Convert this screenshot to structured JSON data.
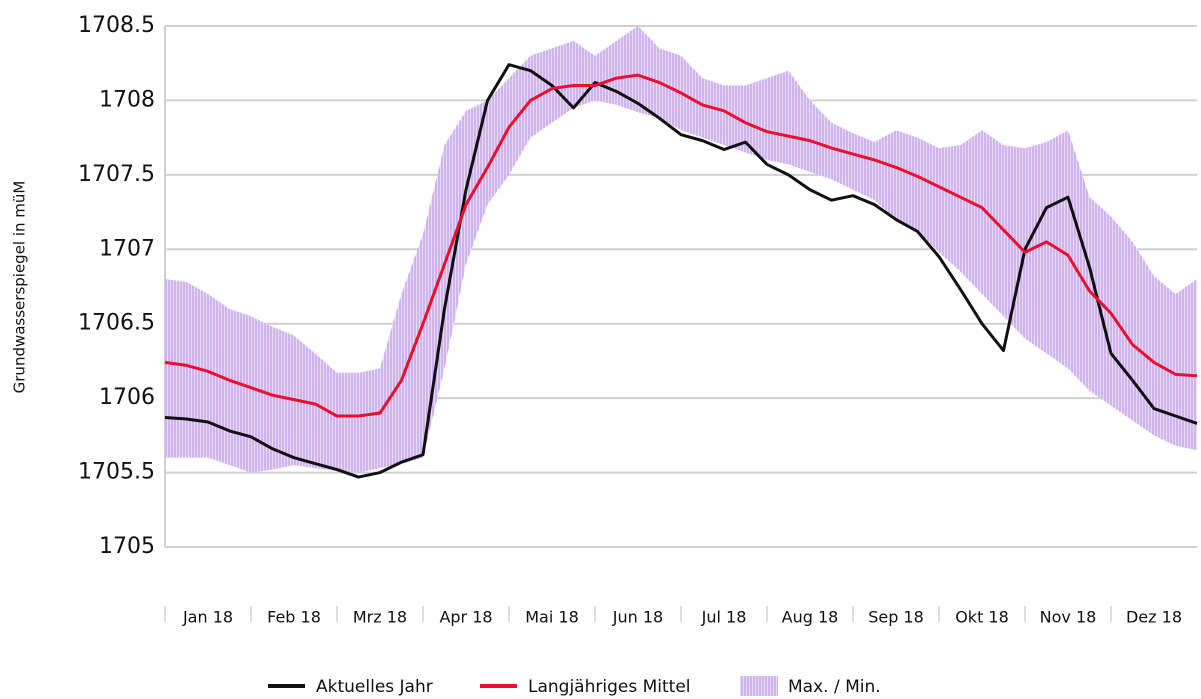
{
  "chart_data": {
    "type": "line",
    "y_label": "Grundwasserspiegel in müM",
    "x": [
      0,
      0.25,
      0.5,
      0.75,
      1,
      1.25,
      1.5,
      1.75,
      2,
      2.25,
      2.5,
      2.75,
      3,
      3.25,
      3.5,
      3.75,
      4,
      4.25,
      4.5,
      4.75,
      5,
      5.25,
      5.5,
      5.75,
      6,
      6.25,
      6.5,
      6.75,
      7,
      7.25,
      7.5,
      7.75,
      8,
      8.25,
      8.5,
      8.75,
      9,
      9.25,
      9.5,
      9.75,
      10,
      10.25,
      10.5,
      10.75,
      11,
      11.25,
      11.5,
      11.75,
      12
    ],
    "xlim": [
      0,
      12
    ],
    "xticks": [
      {
        "value": 0.5,
        "label": "Jan 18"
      },
      {
        "value": 1.5,
        "label": "Feb 18"
      },
      {
        "value": 2.5,
        "label": "Mrz 18"
      },
      {
        "value": 3.5,
        "label": "Apr 18"
      },
      {
        "value": 4.5,
        "label": "Mai 18"
      },
      {
        "value": 5.5,
        "label": "Jun 18"
      },
      {
        "value": 6.5,
        "label": "Jul 18"
      },
      {
        "value": 7.5,
        "label": "Aug 18"
      },
      {
        "value": 8.5,
        "label": "Sep 18"
      },
      {
        "value": 9.5,
        "label": "Okt 18"
      },
      {
        "value": 10.5,
        "label": "Nov 18"
      },
      {
        "value": 11.5,
        "label": "Dez 18"
      }
    ],
    "ylim": [
      1705,
      1708.5
    ],
    "yticks": [
      1705,
      1705.5,
      1706,
      1706.5,
      1707,
      1707.5,
      1708,
      1708.5
    ],
    "grid": true,
    "series": [
      {
        "name": "Aktuelles Jahr",
        "color": "#111111",
        "values": [
          1705.87,
          1705.86,
          1705.84,
          1705.78,
          1705.74,
          1705.66,
          1705.6,
          1705.56,
          1705.52,
          1705.47,
          1705.5,
          1705.57,
          1705.62,
          1706.6,
          1707.4,
          1708.0,
          1708.24,
          1708.2,
          1708.1,
          1707.95,
          1708.12,
          1708.06,
          1707.98,
          1707.88,
          1707.77,
          1707.73,
          1707.67,
          1707.72,
          1707.57,
          1707.5,
          1707.4,
          1707.33,
          1707.36,
          1707.3,
          1707.2,
          1707.12,
          1706.95,
          1706.73,
          1706.5,
          1706.32,
          1707.0,
          1707.28,
          1707.35,
          1706.88,
          1706.3,
          1706.12,
          1705.93,
          1705.88,
          1705.83
        ]
      },
      {
        "name": "Langjähriges Mittel",
        "color": "#e8102e",
        "values": [
          1706.24,
          1706.22,
          1706.18,
          1706.12,
          1706.07,
          1706.02,
          1705.99,
          1705.96,
          1705.88,
          1705.88,
          1705.9,
          1706.12,
          1706.5,
          1706.9,
          1707.3,
          1707.55,
          1707.82,
          1708.0,
          1708.08,
          1708.1,
          1708.1,
          1708.15,
          1708.17,
          1708.12,
          1708.05,
          1707.97,
          1707.93,
          1707.85,
          1707.79,
          1707.76,
          1707.73,
          1707.68,
          1707.64,
          1707.6,
          1707.55,
          1707.49,
          1707.42,
          1707.35,
          1707.28,
          1707.13,
          1706.98,
          1707.05,
          1706.96,
          1706.72,
          1706.57,
          1706.36,
          1706.24,
          1706.16,
          1706.15
        ]
      },
      {
        "name": "Max. / Min.",
        "color": "#b48ae6",
        "upper": [
          1706.8,
          1706.78,
          1706.7,
          1706.6,
          1706.55,
          1706.48,
          1706.42,
          1706.3,
          1706.17,
          1706.17,
          1706.2,
          1706.7,
          1707.1,
          1707.7,
          1707.93,
          1708.0,
          1708.15,
          1708.3,
          1708.35,
          1708.4,
          1708.3,
          1708.4,
          1708.5,
          1708.35,
          1708.3,
          1708.15,
          1708.1,
          1708.1,
          1708.15,
          1708.2,
          1708.0,
          1707.85,
          1707.78,
          1707.72,
          1707.8,
          1707.75,
          1707.68,
          1707.7,
          1707.8,
          1707.7,
          1707.68,
          1707.72,
          1707.8,
          1707.35,
          1707.22,
          1707.05,
          1706.82,
          1706.7,
          1706.8
        ],
        "lower": [
          1705.6,
          1705.6,
          1705.6,
          1705.55,
          1705.5,
          1705.52,
          1705.55,
          1705.53,
          1705.51,
          1705.5,
          1705.53,
          1705.56,
          1705.6,
          1706.2,
          1706.9,
          1707.3,
          1707.5,
          1707.75,
          1707.85,
          1707.95,
          1708.0,
          1707.97,
          1707.92,
          1707.88,
          1707.8,
          1707.75,
          1707.7,
          1707.65,
          1707.6,
          1707.57,
          1707.52,
          1707.47,
          1707.4,
          1707.33,
          1707.2,
          1707.12,
          1706.98,
          1706.85,
          1706.7,
          1706.55,
          1706.4,
          1706.3,
          1706.2,
          1706.05,
          1705.95,
          1705.85,
          1705.75,
          1705.68,
          1705.65
        ]
      }
    ]
  }
}
